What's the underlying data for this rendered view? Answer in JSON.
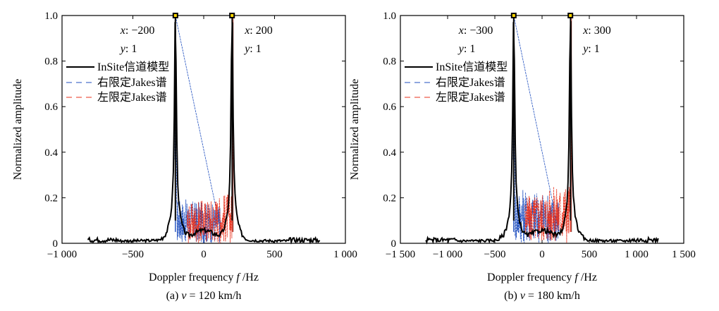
{
  "chart_data": [
    {
      "type": "line",
      "caption": {
        "prefix": "(a) ",
        "var": "v",
        "rest": " = 120 km/h"
      },
      "xlabel": {
        "prefix": "Doppler frequency ",
        "var": "f",
        "rest": " /Hz"
      },
      "ylabel": "Normalized amplitude",
      "xlim": [
        -1000,
        1000
      ],
      "ylim": [
        0,
        1
      ],
      "xticks": [
        {
          "value": -1000,
          "label": "−1 000"
        },
        {
          "value": -500,
          "label": "−500"
        },
        {
          "value": 0,
          "label": "0"
        },
        {
          "value": 500,
          "label": "500"
        },
        {
          "value": 1000,
          "label": "1 000"
        }
      ],
      "yticks": [
        {
          "value": 0,
          "label": "0"
        },
        {
          "value": 0.2,
          "label": "0.2"
        },
        {
          "value": 0.4,
          "label": "0.4"
        },
        {
          "value": 0.6,
          "label": "0.6"
        },
        {
          "value": 0.8,
          "label": "0.8"
        },
        {
          "value": 1.0,
          "label": "1.0"
        }
      ],
      "fmax": 200,
      "xrange": [
        -820,
        820
      ],
      "legend": {
        "position": "left",
        "entries": [
          "InSite信道模型",
          "右限定Jakes谱",
          "左限定Jakes谱"
        ]
      },
      "annotations": [
        {
          "x": -200,
          "y": 1,
          "xtext": ": −200",
          "ytext": ": 1"
        },
        {
          "x": 200,
          "y": 1,
          "xtext": ": 200",
          "ytext": ": 1"
        }
      ],
      "series": [
        {
          "name": "InSite信道模型",
          "color": "#000000",
          "style": "solid"
        },
        {
          "name": "右限定Jakes谱",
          "color": "#1f4fbf",
          "style": "dash"
        },
        {
          "name": "左限定Jakes谱",
          "color": "#e8321e",
          "style": "dash"
        }
      ]
    },
    {
      "type": "line",
      "caption": {
        "prefix": "(b) ",
        "var": "v",
        "rest": " = 180 km/h"
      },
      "xlabel": {
        "prefix": "Doppler frequency ",
        "var": "f",
        "rest": " /Hz"
      },
      "ylabel": "Normalized amplitude",
      "xlim": [
        -1500,
        1500
      ],
      "ylim": [
        0,
        1
      ],
      "xticks": [
        {
          "value": -1500,
          "label": "−1 500"
        },
        {
          "value": -1000,
          "label": "−1 000"
        },
        {
          "value": -500,
          "label": "−500"
        },
        {
          "value": 0,
          "label": "0"
        },
        {
          "value": 500,
          "label": "500"
        },
        {
          "value": 1000,
          "label": "1 000"
        },
        {
          "value": 1500,
          "label": "1 500"
        }
      ],
      "yticks": [
        {
          "value": 0,
          "label": "0"
        },
        {
          "value": 0.2,
          "label": "0.2"
        },
        {
          "value": 0.4,
          "label": "0.4"
        },
        {
          "value": 0.6,
          "label": "0.6"
        },
        {
          "value": 0.8,
          "label": "0.8"
        },
        {
          "value": 1.0,
          "label": "1.0"
        }
      ],
      "fmax": 300,
      "xrange": [
        -1230,
        1230
      ],
      "legend": {
        "position": "left",
        "entries": [
          "InSite信道模型",
          "右限定Jakes谱",
          "左限定Jakes谱"
        ]
      },
      "annotations": [
        {
          "x": -300,
          "y": 1,
          "xtext": ": −300",
          "ytext": ": 1"
        },
        {
          "x": 300,
          "y": 1,
          "xtext": ": 300",
          "ytext": ": 1"
        }
      ],
      "series": [
        {
          "name": "InSite信道模型",
          "color": "#000000",
          "style": "solid"
        },
        {
          "name": "右限定Jakes谱",
          "color": "#1f4fbf",
          "style": "dash"
        },
        {
          "name": "左限定Jakes谱",
          "color": "#e8321e",
          "style": "dash"
        }
      ]
    }
  ]
}
